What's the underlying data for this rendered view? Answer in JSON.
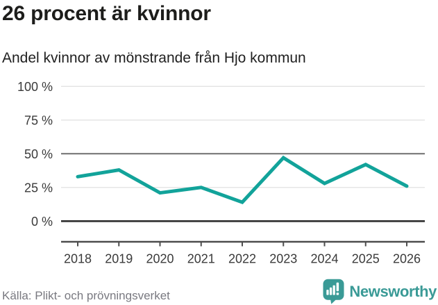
{
  "header": {
    "title": "26 procent är kvinnor",
    "subtitle": "Andel kvinnor av mönstrande från Hjo kommun"
  },
  "chart_data": {
    "type": "line",
    "title": "26 procent är kvinnor",
    "subtitle": "Andel kvinnor av mönstrande från Hjo kommun",
    "categories": [
      "2018",
      "2019",
      "2020",
      "2021",
      "2022",
      "2023",
      "2024",
      "2025",
      "2026"
    ],
    "series": [
      {
        "name": "Andel kvinnor av mönstrande",
        "values": [
          33,
          38,
          21,
          25,
          14,
          47,
          28,
          42,
          26
        ]
      }
    ],
    "unit": "%",
    "ylim": [
      0,
      100
    ],
    "yticks": [
      {
        "value": 0,
        "label": "0 %"
      },
      {
        "value": 25,
        "label": "25 %"
      },
      {
        "value": 50,
        "label": "50 %"
      },
      {
        "value": 75,
        "label": "75 %"
      },
      {
        "value": 100,
        "label": "100 %"
      }
    ],
    "grid": true,
    "legend_position": "none",
    "line_color": "#12a39a"
  },
  "footer": {
    "source": "Källa: Plikt- och prövningsverket",
    "brand": "Newsworthy"
  },
  "colors": {
    "line": "#12a39a",
    "brand": "#3a9a96",
    "grid_light": "#e3e3e3",
    "grid_mid": "#6f6f6f",
    "baseline": "#2d2d2d",
    "axis": "#4d4d4d",
    "text_dark": "#1d1d1b",
    "text_gray": "#797980",
    "tick_text": "#3a3a3a"
  }
}
